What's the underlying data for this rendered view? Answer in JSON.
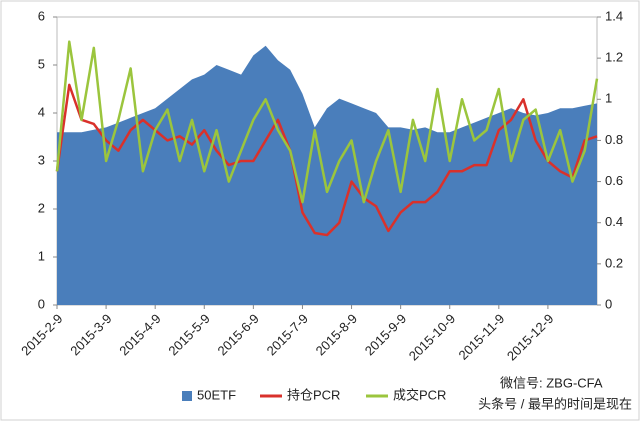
{
  "chart_data": {
    "type": "area-line",
    "categories": [
      "2015-2-9",
      null,
      null,
      null,
      "2015-3-9",
      null,
      null,
      null,
      "2015-4-9",
      null,
      null,
      null,
      "2015-5-9",
      null,
      null,
      null,
      "2015-6-9",
      null,
      null,
      null,
      "2015-7-9",
      null,
      null,
      null,
      "2015-8-9",
      null,
      null,
      null,
      "2015-9-9",
      null,
      null,
      null,
      "2015-10-9",
      null,
      null,
      null,
      "2015-11-9",
      null,
      null,
      null,
      "2015-12-9",
      null,
      null,
      null,
      null
    ],
    "series": [
      {
        "name": "50ETF",
        "color": "#4a7ebb",
        "axis": "y",
        "values": [
          3.6,
          3.6,
          3.6,
          3.65,
          3.7,
          3.8,
          3.9,
          4.0,
          4.1,
          4.3,
          4.5,
          4.7,
          4.8,
          5.0,
          4.9,
          4.8,
          5.2,
          5.4,
          5.1,
          4.9,
          4.4,
          3.7,
          4.1,
          4.3,
          4.2,
          4.1,
          4.0,
          3.7,
          3.7,
          3.65,
          3.7,
          3.6,
          3.6,
          3.7,
          3.8,
          3.9,
          4.0,
          4.1,
          4.0,
          3.95,
          4.0,
          4.1,
          4.1,
          4.15,
          4.2
        ]
      },
      {
        "name": "持仓PCR",
        "color": "#d9312b",
        "axis": "y2",
        "values": [
          0.65,
          1.07,
          0.9,
          0.88,
          0.8,
          0.75,
          0.85,
          0.9,
          0.85,
          0.8,
          0.82,
          0.78,
          0.85,
          0.75,
          0.68,
          0.7,
          0.7,
          0.8,
          0.9,
          0.75,
          0.45,
          0.35,
          0.34,
          0.4,
          0.6,
          0.52,
          0.48,
          0.36,
          0.45,
          0.5,
          0.5,
          0.55,
          0.65,
          0.65,
          0.68,
          0.68,
          0.85,
          0.9,
          1.0,
          0.8,
          0.7,
          0.65,
          0.62,
          0.8,
          0.82
        ]
      },
      {
        "name": "成交PCR",
        "color": "#9bc53d",
        "axis": "y2",
        "values": [
          0.65,
          1.28,
          0.9,
          1.25,
          0.7,
          0.9,
          1.15,
          0.65,
          0.85,
          0.95,
          0.7,
          0.9,
          0.65,
          0.85,
          0.6,
          0.75,
          0.9,
          1.0,
          0.85,
          0.75,
          0.5,
          0.85,
          0.55,
          0.7,
          0.8,
          0.5,
          0.7,
          0.85,
          0.55,
          0.9,
          0.7,
          1.05,
          0.7,
          1.0,
          0.8,
          0.85,
          1.05,
          0.7,
          0.9,
          0.95,
          0.7,
          0.85,
          0.6,
          0.75,
          1.1
        ]
      }
    ],
    "ylim": [
      0,
      6
    ],
    "yticks": [
      0,
      1,
      2,
      3,
      4,
      5,
      6
    ],
    "y2lim": [
      0,
      1.4
    ],
    "y2ticks": [
      0,
      0.2,
      0.4,
      0.6,
      0.8,
      1,
      1.2,
      1.4
    ],
    "legend": "bottom",
    "watermark": [
      "微信号: ZBG-CFA",
      "头条号 / 最早的时间是现在"
    ]
  }
}
